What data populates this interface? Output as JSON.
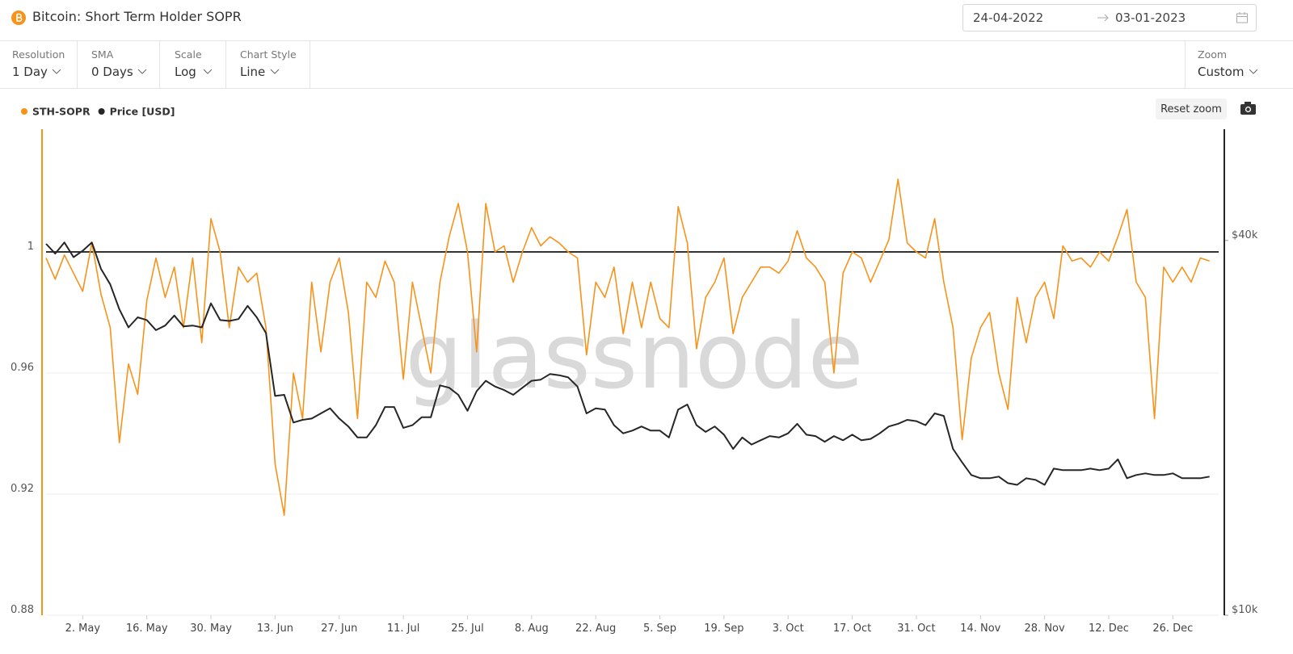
{
  "header": {
    "title": "Bitcoin: Short Term Holder SOPR",
    "date_from": "24-04-2022",
    "date_to": "03-01-2023"
  },
  "controls": [
    {
      "label": "Resolution",
      "value": "1 Day"
    },
    {
      "label": "SMA",
      "value": "0 Days"
    },
    {
      "label": "Scale",
      "value": "Log"
    },
    {
      "label": "Chart Style",
      "value": "Line"
    }
  ],
  "zoom": {
    "label": "Zoom",
    "value": "Custom"
  },
  "reset_zoom": "Reset zoom",
  "watermark": "glassnode",
  "chart_data": {
    "type": "line",
    "x": [
      "2022-04-24",
      "2022-04-26",
      "2022-04-28",
      "2022-04-30",
      "2022-05-02",
      "2022-05-04",
      "2022-05-06",
      "2022-05-08",
      "2022-05-10",
      "2022-05-12",
      "2022-05-14",
      "2022-05-16",
      "2022-05-18",
      "2022-05-20",
      "2022-05-22",
      "2022-05-24",
      "2022-05-26",
      "2022-05-28",
      "2022-05-30",
      "2022-06-01",
      "2022-06-03",
      "2022-06-05",
      "2022-06-07",
      "2022-06-09",
      "2022-06-11",
      "2022-06-13",
      "2022-06-15",
      "2022-06-17",
      "2022-06-19",
      "2022-06-21",
      "2022-06-23",
      "2022-06-25",
      "2022-06-27",
      "2022-06-29",
      "2022-07-01",
      "2022-07-03",
      "2022-07-05",
      "2022-07-07",
      "2022-07-09",
      "2022-07-11",
      "2022-07-13",
      "2022-07-15",
      "2022-07-17",
      "2022-07-19",
      "2022-07-21",
      "2022-07-23",
      "2022-07-25",
      "2022-07-27",
      "2022-07-29",
      "2022-07-31",
      "2022-08-02",
      "2022-08-04",
      "2022-08-06",
      "2022-08-08",
      "2022-08-10",
      "2022-08-12",
      "2022-08-14",
      "2022-08-16",
      "2022-08-18",
      "2022-08-20",
      "2022-08-22",
      "2022-08-24",
      "2022-08-26",
      "2022-08-28",
      "2022-08-30",
      "2022-09-01",
      "2022-09-03",
      "2022-09-05",
      "2022-09-07",
      "2022-09-09",
      "2022-09-11",
      "2022-09-13",
      "2022-09-15",
      "2022-09-17",
      "2022-09-19",
      "2022-09-21",
      "2022-09-23",
      "2022-09-25",
      "2022-09-27",
      "2022-09-29",
      "2022-10-01",
      "2022-10-03",
      "2022-10-05",
      "2022-10-07",
      "2022-10-09",
      "2022-10-11",
      "2022-10-13",
      "2022-10-15",
      "2022-10-17",
      "2022-10-19",
      "2022-10-21",
      "2022-10-23",
      "2022-10-25",
      "2022-10-27",
      "2022-10-29",
      "2022-10-31",
      "2022-11-02",
      "2022-11-04",
      "2022-11-06",
      "2022-11-08",
      "2022-11-10",
      "2022-11-12",
      "2022-11-14",
      "2022-11-16",
      "2022-11-18",
      "2022-11-20",
      "2022-11-22",
      "2022-11-24",
      "2022-11-26",
      "2022-11-28",
      "2022-11-30",
      "2022-12-02",
      "2022-12-04",
      "2022-12-06",
      "2022-12-08",
      "2022-12-10",
      "2022-12-12",
      "2022-12-14",
      "2022-12-16",
      "2022-12-18",
      "2022-12-20",
      "2022-12-22",
      "2022-12-24",
      "2022-12-26",
      "2022-12-28",
      "2022-12-30",
      "2023-01-01",
      "2023-01-03"
    ],
    "series": [
      {
        "name": "STH-SOPR",
        "color": "#f7931a",
        "values": [
          0.998,
          0.991,
          0.999,
          0.993,
          0.987,
          1.003,
          0.986,
          0.975,
          0.937,
          0.963,
          0.953,
          0.984,
          0.998,
          0.985,
          0.995,
          0.975,
          0.998,
          0.97,
          1.011,
          1.0,
          0.975,
          0.995,
          0.99,
          0.993,
          0.975,
          0.93,
          0.913,
          0.96,
          0.945,
          0.99,
          0.967,
          0.99,
          0.998,
          0.98,
          0.945,
          0.99,
          0.985,
          0.997,
          0.99,
          0.958,
          0.99,
          0.975,
          0.96,
          0.99,
          1.005,
          1.016,
          1.0,
          0.967,
          1.016,
          1.0,
          1.002,
          0.99,
          1.0,
          1.008,
          1.002,
          1.005,
          1.003,
          1.0,
          0.998,
          0.966,
          0.99,
          0.985,
          0.995,
          0.973,
          0.99,
          0.975,
          0.99,
          0.978,
          0.975,
          1.015,
          1.003,
          0.968,
          0.985,
          0.99,
          0.998,
          0.973,
          0.985,
          0.99,
          0.995,
          0.995,
          0.993,
          0.997,
          1.007,
          0.998,
          0.995,
          0.99,
          0.96,
          0.993,
          1.0,
          0.998,
          0.99,
          0.997,
          1.004,
          1.024,
          1.003,
          1.0,
          0.998,
          1.011,
          0.99,
          0.975,
          0.938,
          0.965,
          0.975,
          0.98,
          0.96,
          0.948,
          0.985,
          0.97,
          0.985,
          0.99,
          0.978,
          1.002,
          0.997,
          0.998,
          0.995,
          1.0,
          0.997,
          1.005,
          1.014,
          0.99,
          0.985,
          0.945,
          0.995,
          0.99,
          0.995,
          0.99,
          0.998,
          0.997
        ]
      },
      {
        "name": "Price [USD]",
        "color": "#262626",
        "axis": "y2",
        "values": [
          39500,
          38100,
          39700,
          37600,
          38500,
          39700,
          36000,
          34000,
          31000,
          29000,
          30100,
          29800,
          28700,
          29200,
          30300,
          29100,
          29200,
          29000,
          31700,
          29800,
          29700,
          29900,
          31400,
          30100,
          28400,
          22500,
          22600,
          20400,
          20600,
          20700,
          21100,
          21500,
          20700,
          20100,
          19300,
          19300,
          20200,
          21600,
          21600,
          20000,
          20200,
          20800,
          20800,
          23400,
          23200,
          22600,
          21300,
          22900,
          23800,
          23300,
          23000,
          22600,
          23200,
          23800,
          23900,
          24400,
          24300,
          24100,
          23300,
          21100,
          21500,
          21400,
          20200,
          19600,
          19800,
          20100,
          19800,
          19800,
          19300,
          21400,
          21800,
          20200,
          19700,
          20100,
          19500,
          18500,
          19300,
          18800,
          19100,
          19400,
          19300,
          19600,
          20300,
          19500,
          19400,
          19000,
          19400,
          19100,
          19500,
          19100,
          19200,
          19600,
          20100,
          20300,
          20600,
          20500,
          20200,
          21100,
          20900,
          18500,
          17600,
          16800,
          16600,
          16600,
          16700,
          16300,
          16200,
          16600,
          16500,
          16200,
          17200,
          17100,
          17100,
          17100,
          17200,
          17100,
          17200,
          17800,
          16600,
          16800,
          16900,
          16800,
          16800,
          16900,
          16600,
          16600,
          16600,
          16700
        ]
      }
    ],
    "xlim": [
      "2022-04-24",
      "2023-01-05"
    ],
    "xticks": [
      {
        "value": "2022-05-02",
        "label": "2. May"
      },
      {
        "value": "2022-05-16",
        "label": "16. May"
      },
      {
        "value": "2022-05-30",
        "label": "30. May"
      },
      {
        "value": "2022-06-13",
        "label": "13. Jun"
      },
      {
        "value": "2022-06-27",
        "label": "27. Jun"
      },
      {
        "value": "2022-07-11",
        "label": "11. Jul"
      },
      {
        "value": "2022-07-25",
        "label": "25. Jul"
      },
      {
        "value": "2022-08-08",
        "label": "8. Aug"
      },
      {
        "value": "2022-08-22",
        "label": "22. Aug"
      },
      {
        "value": "2022-09-05",
        "label": "5. Sep"
      },
      {
        "value": "2022-09-19",
        "label": "19. Sep"
      },
      {
        "value": "2022-10-03",
        "label": "3. Oct"
      },
      {
        "value": "2022-10-17",
        "label": "17. Oct"
      },
      {
        "value": "2022-10-31",
        "label": "31. Oct"
      },
      {
        "value": "2022-11-14",
        "label": "14. Nov"
      },
      {
        "value": "2022-11-28",
        "label": "28. Nov"
      },
      {
        "value": "2022-12-12",
        "label": "12. Dec"
      },
      {
        "value": "2022-12-26",
        "label": "26. Dec"
      }
    ],
    "ylim": [
      0.88,
      1.04
    ],
    "yticks": [
      0.88,
      0.92,
      0.96,
      1
    ],
    "y2lim": [
      10000,
      60000
    ],
    "y2ticks": [
      {
        "value": 10000,
        "label": "$10k"
      },
      {
        "value": 40000,
        "label": "$40k"
      }
    ],
    "y2log": true,
    "grid": true
  }
}
